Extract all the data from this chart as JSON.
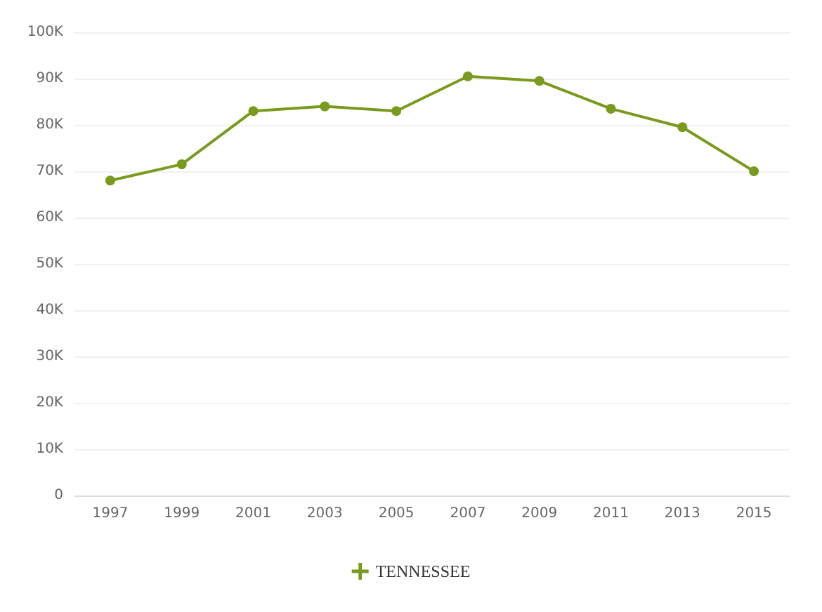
{
  "chart_data": {
    "type": "line",
    "categories": [
      "1997",
      "1999",
      "2001",
      "2003",
      "2005",
      "2007",
      "2009",
      "2011",
      "2013",
      "2015"
    ],
    "series": [
      {
        "name": "TENNESSEE",
        "color": "#7a9a1e",
        "values": [
          68000,
          71500,
          83000,
          84000,
          83000,
          90500,
          89500,
          83500,
          79500,
          70000
        ]
      }
    ],
    "ylim": [
      0,
      100000
    ],
    "yticks": [
      {
        "value": 0,
        "label": "0"
      },
      {
        "value": 10000,
        "label": "10K"
      },
      {
        "value": 20000,
        "label": "20K"
      },
      {
        "value": 30000,
        "label": "30K"
      },
      {
        "value": 40000,
        "label": "40K"
      },
      {
        "value": 50000,
        "label": "50K"
      },
      {
        "value": 60000,
        "label": "60K"
      },
      {
        "value": 70000,
        "label": "70K"
      },
      {
        "value": 80000,
        "label": "80K"
      },
      {
        "value": 90000,
        "label": "90K"
      },
      {
        "value": 100000,
        "label": "100K"
      }
    ],
    "grid": "y",
    "legend": "bottom",
    "marker": "circle",
    "line_style": "solid"
  }
}
